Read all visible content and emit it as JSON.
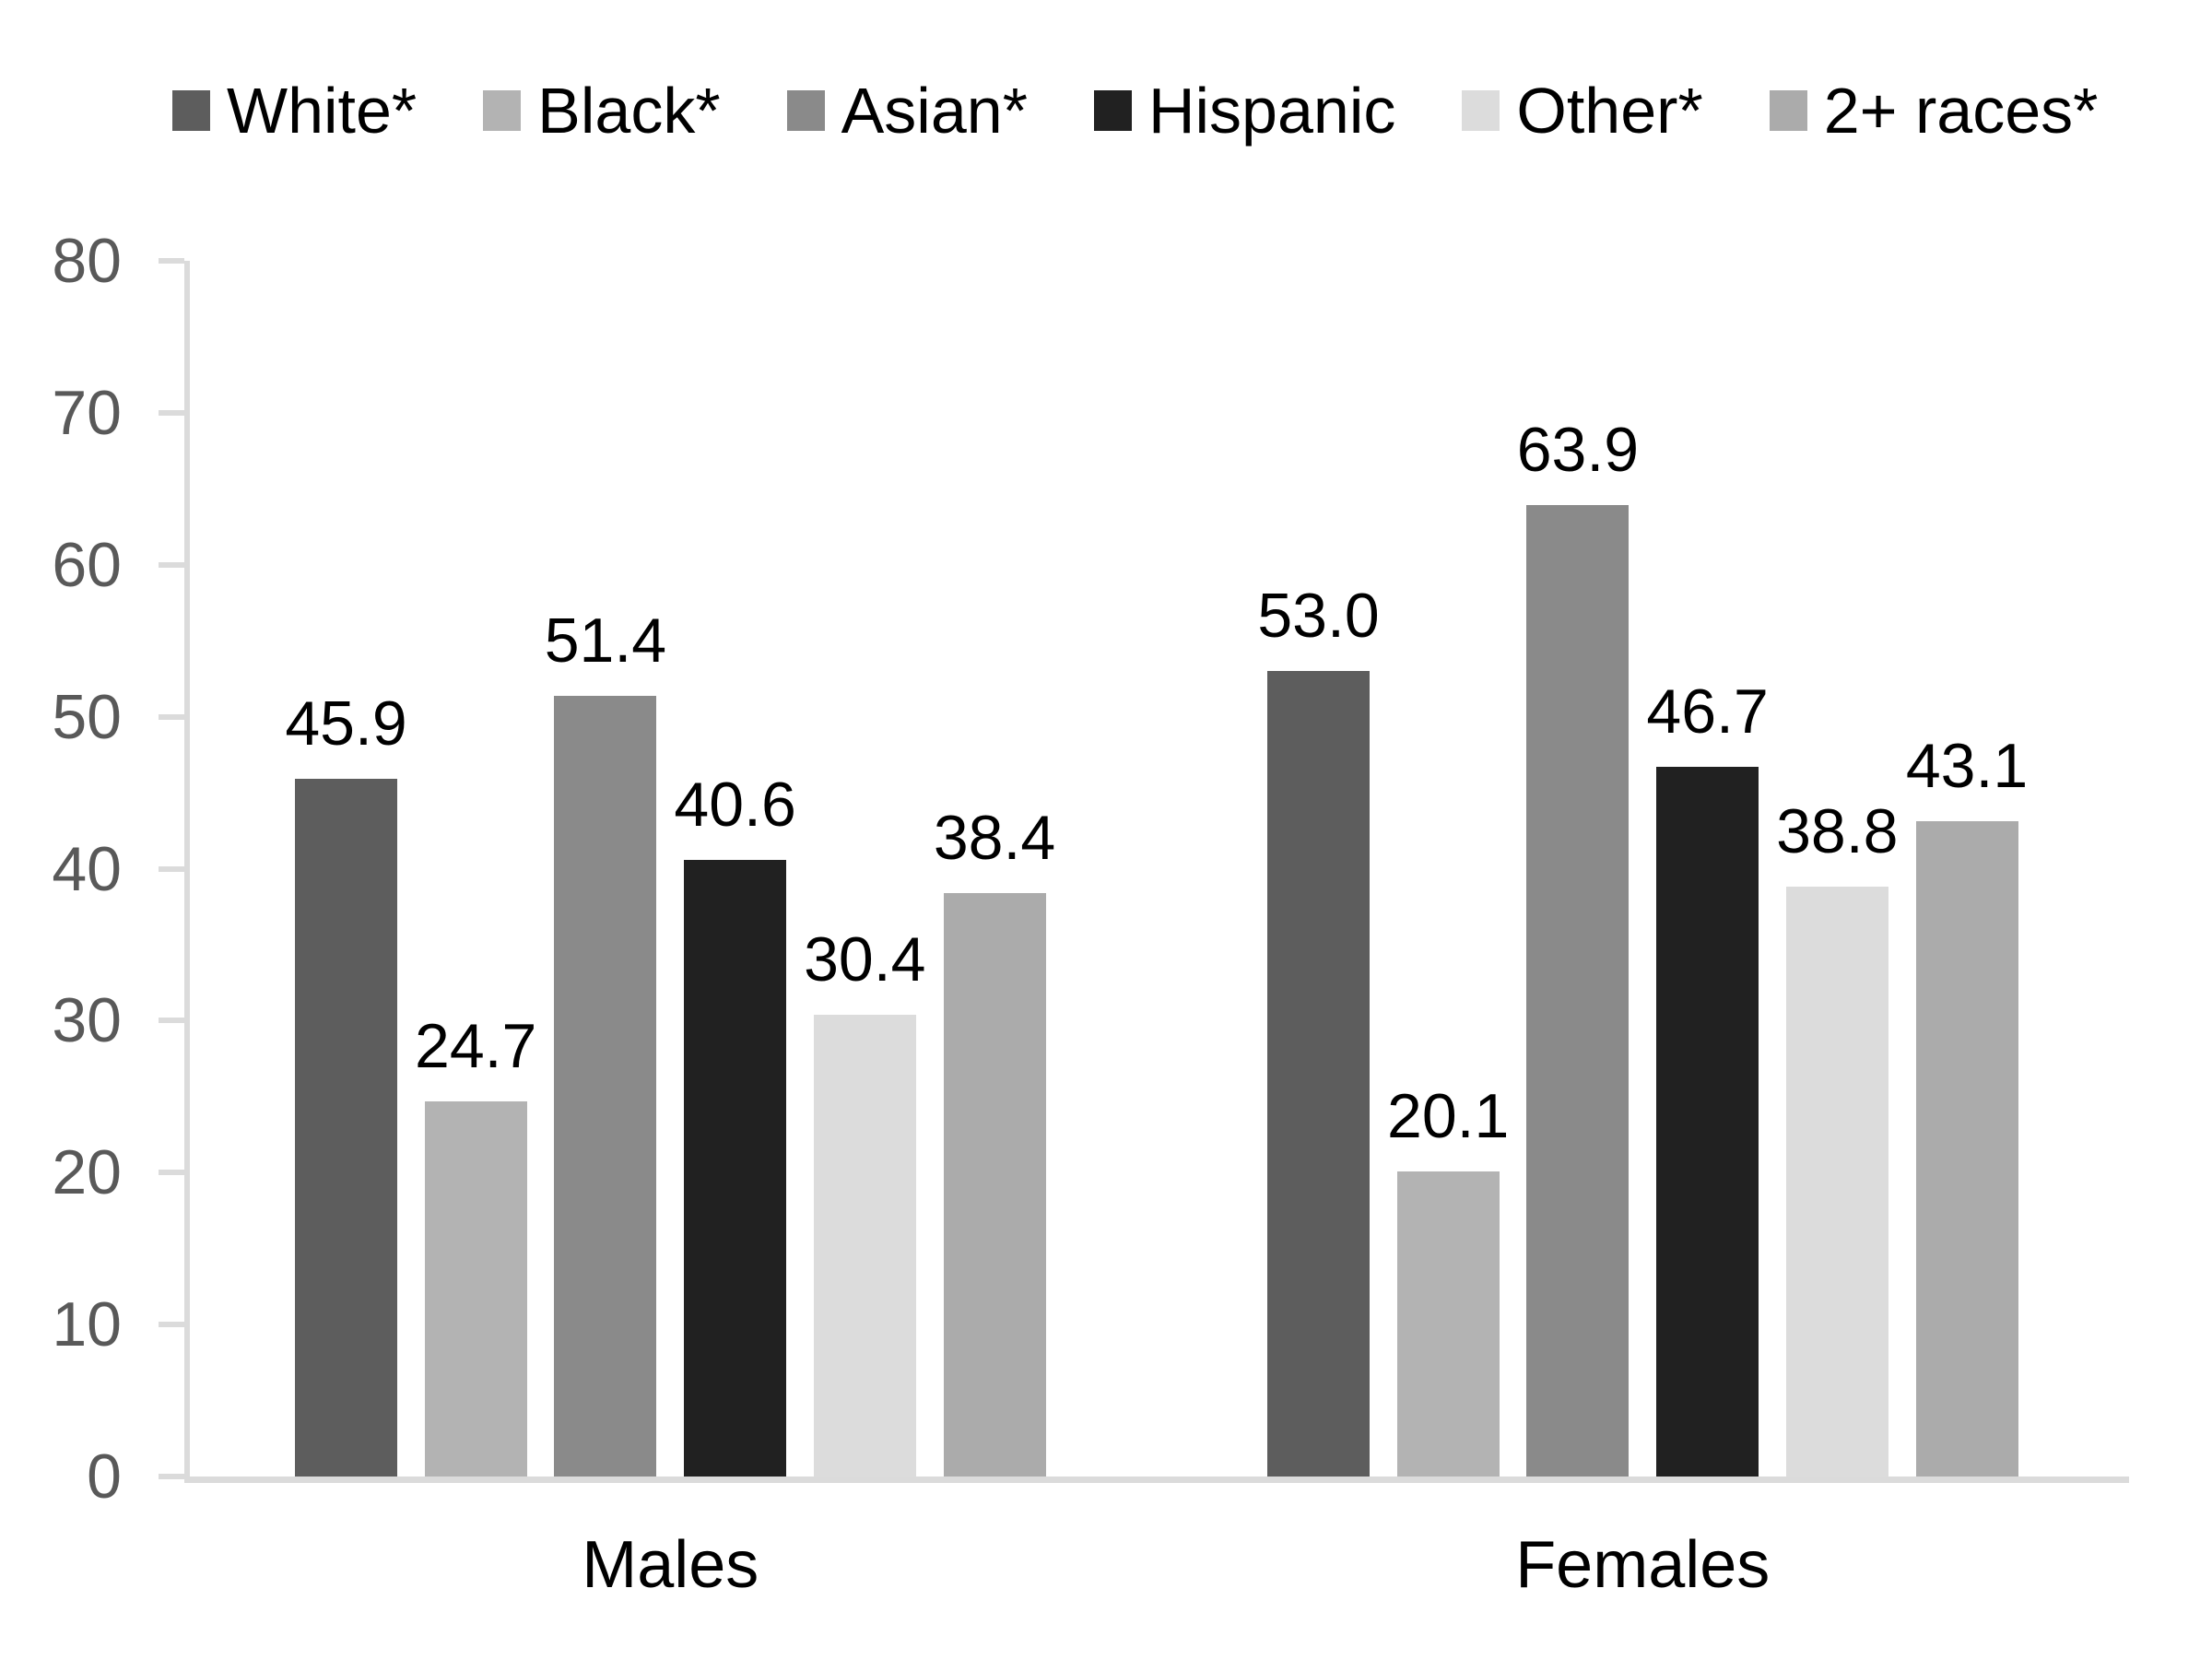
{
  "chart_data": {
    "type": "bar",
    "title": "",
    "categories": [
      "Males",
      "Females"
    ],
    "series": [
      {
        "name": "White*",
        "color": "#5d5d5d",
        "values": [
          45.9,
          53.0
        ],
        "labels": [
          "45.9",
          "53.0"
        ]
      },
      {
        "name": "Black*",
        "color": "#b3b3b3",
        "values": [
          24.7,
          20.1
        ],
        "labels": [
          "24.7",
          "20.1"
        ]
      },
      {
        "name": "Asian*",
        "color": "#8a8a8a",
        "values": [
          51.4,
          63.9
        ],
        "labels": [
          "51.4",
          "63.9"
        ]
      },
      {
        "name": "Hispanic",
        "color": "#212121",
        "values": [
          40.6,
          46.7
        ],
        "labels": [
          "40.6",
          "46.7"
        ]
      },
      {
        "name": "Other*",
        "color": "#dcdcdc",
        "values": [
          30.4,
          38.8
        ],
        "labels": [
          "30.4",
          "38.8"
        ]
      },
      {
        "name": "2+ races*",
        "color": "#ababab",
        "values": [
          38.4,
          43.1
        ],
        "labels": [
          "38.4",
          "43.1"
        ]
      }
    ],
    "y_axis": {
      "min": 0,
      "max": 80,
      "tick_interval": 10,
      "tick_labels": [
        "80",
        "70",
        "60",
        "50",
        "40",
        "30",
        "20",
        "10",
        "0"
      ]
    },
    "legend_position": "top",
    "grid": false,
    "data_labels_shown": true,
    "colors": {
      "axis_line": "#dbdbdb",
      "tick_label_text": "#595959",
      "data_label_text": "#000000",
      "category_label_text": "#000000",
      "legend_text": "#000000",
      "background": "#ffffff"
    }
  }
}
